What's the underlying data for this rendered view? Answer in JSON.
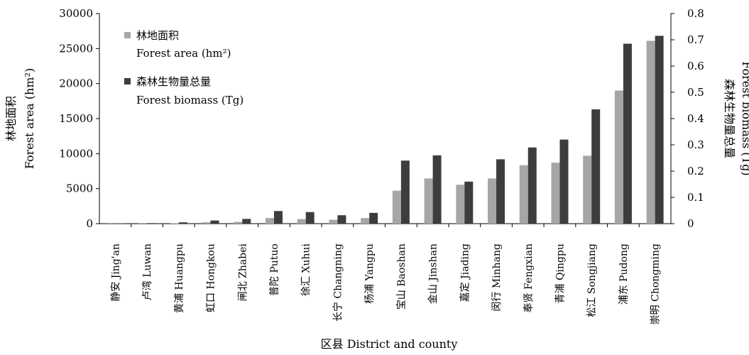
{
  "chart_data": {
    "type": "bar",
    "xlabel": "区县 District and county",
    "ylabel_left_cn": "林地面积",
    "ylabel_left_en": "Forest area (hm²)",
    "ylabel_right_cn": "森林生物量总量",
    "ylabel_right_en": "Forest biomass (Tg)",
    "ylim_left": [
      0,
      30000
    ],
    "yticks_left": [
      0,
      5000,
      10000,
      15000,
      20000,
      25000,
      30000
    ],
    "ylim_right": [
      0,
      0.8
    ],
    "yticks_right": [
      "0",
      "0.1",
      "0.2",
      "0.3",
      "0.4",
      "0.5",
      "0.6",
      "0.7",
      "0.8"
    ],
    "grid": false,
    "legend_position": "top-left",
    "categories": [
      "静安 Jing'an",
      "卢湾 Luwan",
      "黄浦 Huangpu",
      "虹口 Hongkou",
      "闸北 Zhabei",
      "普陀 Putuo",
      "徐汇 Xuhui",
      "长宁 Changning",
      "杨浦 Yangpu",
      "宝山 Baoshan",
      "金山 Jinshan",
      "嘉定 Jiading",
      "闵行 Minhang",
      "奉贤 Fengxian",
      "青浦 Qingpu",
      "松江 Songjiang",
      "浦东 Pudong",
      "崇明 Chongming"
    ],
    "series": [
      {
        "name_cn": "林地面积",
        "name_en": "Forest area (hm²)",
        "axis": "left",
        "color": "#a6a6a6",
        "values": [
          20,
          30,
          60,
          200,
          250,
          800,
          650,
          550,
          800,
          4700,
          6450,
          5550,
          6450,
          8350,
          8700,
          9700,
          19000,
          26100
        ]
      },
      {
        "name_cn": "森林生物量总量",
        "name_en": "Forest biomass (Tg)",
        "axis": "right",
        "color": "#3d3d3d",
        "values": [
          0.001,
          0.002,
          0.005,
          0.012,
          0.018,
          0.048,
          0.044,
          0.032,
          0.041,
          0.24,
          0.26,
          0.16,
          0.245,
          0.29,
          0.32,
          0.435,
          0.685,
          0.715
        ]
      }
    ]
  }
}
